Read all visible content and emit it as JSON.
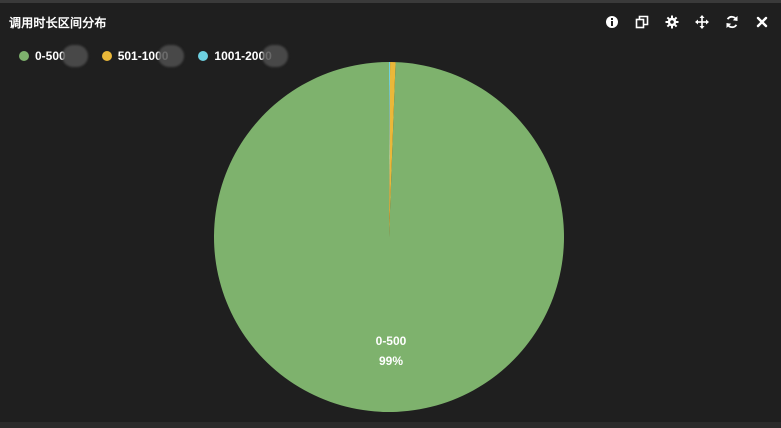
{
  "panel": {
    "title": "调用时长区间分布"
  },
  "toolbar": {
    "icons": [
      "info-icon",
      "copy-icon",
      "gear-icon",
      "move-icon",
      "refresh-icon",
      "close-icon"
    ]
  },
  "chart_data": {
    "type": "pie",
    "title": "调用时长区间分布",
    "legend_position": "top-left",
    "slices": [
      {
        "name": "0-500",
        "value": 99.4,
        "color": "#7eb26d",
        "percent_label": "99%"
      },
      {
        "name": "501-1000",
        "value": 0.5,
        "color": "#eab839",
        "percent_label": ""
      },
      {
        "name": "1001-2000",
        "value": 0.1,
        "color": "#6ed0e0",
        "percent_label": ""
      }
    ]
  }
}
